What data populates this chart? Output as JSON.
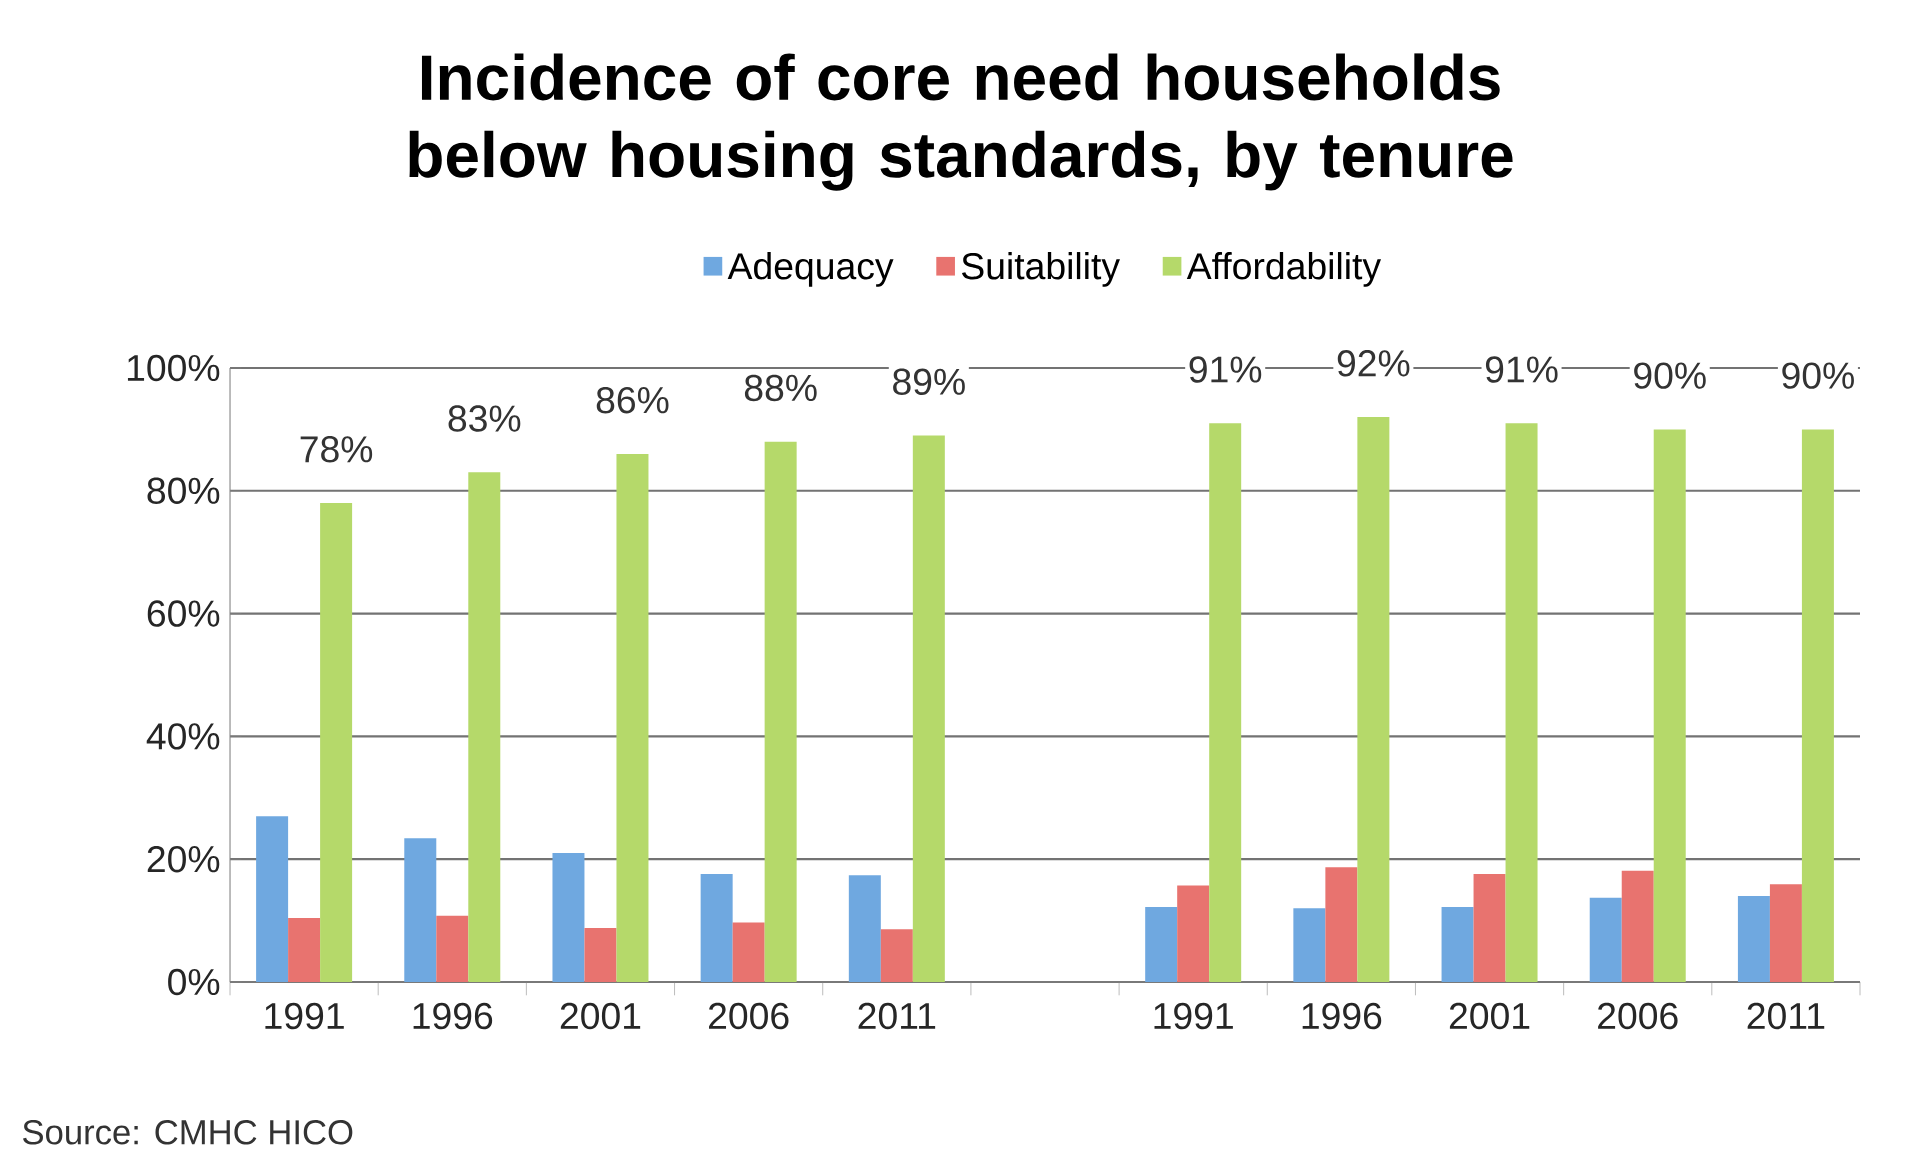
{
  "chart_data": {
    "type": "bar",
    "title": "Incidence of core need households below housing standards, by tenure",
    "categories": [
      "1991",
      "1996",
      "2001",
      "2006",
      "2011",
      null,
      "1991",
      "1996",
      "2001",
      "2006",
      "2011"
    ],
    "series": [
      {
        "name": "Adequacy",
        "color": "#6fa8e0",
        "values": [
          27,
          23.4,
          21,
          17.6,
          17.4,
          null,
          12.2,
          12,
          12.2,
          13.7,
          14
        ]
      },
      {
        "name": "Suitability",
        "color": "#e8736f",
        "values": [
          10.4,
          10.8,
          8.8,
          9.7,
          8.6,
          null,
          15.7,
          18.7,
          17.6,
          18.1,
          15.9
        ]
      },
      {
        "name": "Affordability",
        "color": "#b5d96a",
        "values": [
          78,
          83,
          86,
          88,
          89,
          null,
          91,
          92,
          91,
          90,
          90
        ],
        "value_labels": [
          "78%",
          "83%",
          "86%",
          "88%",
          "89%",
          null,
          "91%",
          "92%",
          "91%",
          "90%",
          "90%"
        ]
      }
    ],
    "ylim": [
      0,
      100
    ],
    "yticks": [
      {
        "value": 0,
        "label": "0%"
      },
      {
        "value": 20,
        "label": "20%"
      },
      {
        "value": 40,
        "label": "40%"
      },
      {
        "value": 60,
        "label": "60%"
      },
      {
        "value": 80,
        "label": "80%"
      },
      {
        "value": 100,
        "label": "100%"
      }
    ],
    "grid": "y",
    "legend": "top",
    "annotations": [
      "Source: CMHC HICO"
    ]
  }
}
